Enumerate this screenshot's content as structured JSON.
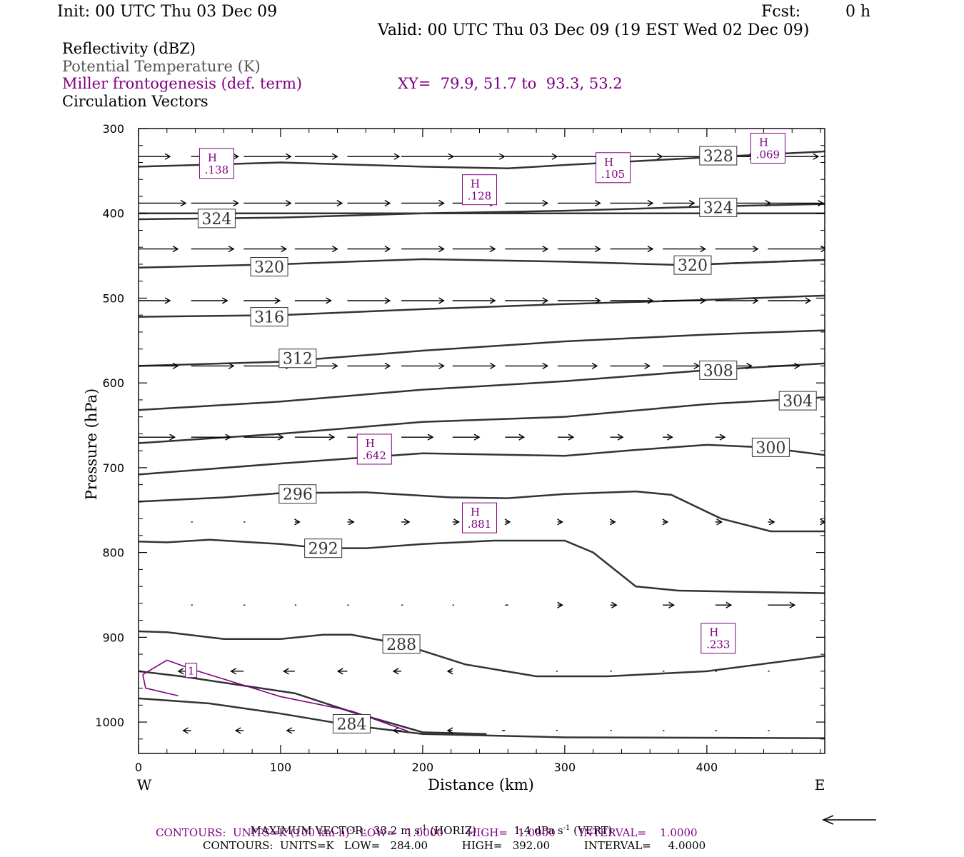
{
  "header": {
    "init": "Init: 00 UTC Thu 03 Dec 09",
    "fcst_label": "Fcst:",
    "fcst_value": "0 h",
    "valid": "Valid: 00 UTC Thu 03 Dec 09 (19 EST Wed 02 Dec 09)"
  },
  "legend": {
    "line1": "Reflectivity (dBZ)",
    "line2": "Potential Temperature (K)",
    "line3": "Miller frontogenesis (def. term)",
    "xy": "XY=  79.9, 51.7 to  93.3, 53.2",
    "line4": "Circulation Vectors"
  },
  "colors": {
    "theta": "#333333",
    "fronto": "#800080",
    "vectors": "#000000",
    "frame": "#000000"
  },
  "chart_data": {
    "type": "line",
    "title": "",
    "xlabel": "Distance (km)",
    "ylabel": "Pressure (hPa)",
    "xlim": [
      0,
      483
    ],
    "ylim": [
      1037,
      300
    ],
    "x_ticks": [
      0,
      100,
      200,
      300,
      400
    ],
    "y_ticks": [
      300,
      400,
      500,
      600,
      700,
      800,
      900,
      1000
    ],
    "x_end_labels": {
      "left": "W",
      "right": "E"
    },
    "theta_contours": [
      {
        "name": "328",
        "label_at": [
          408,
          332
        ],
        "points": [
          [
            0,
            345
          ],
          [
            100,
            340
          ],
          [
            200,
            345
          ],
          [
            260,
            347
          ],
          [
            300,
            343
          ],
          [
            400,
            334
          ],
          [
            483,
            327
          ]
        ]
      },
      {
        "name": "324",
        "label_at": [
          55,
          406
        ],
        "points": [
          [
            0,
            407
          ],
          [
            100,
            405
          ],
          [
            200,
            400
          ],
          [
            300,
            397
          ],
          [
            400,
            392
          ],
          [
            483,
            389
          ]
        ]
      },
      {
        "name": "324",
        "label_at": [
          408,
          393
        ],
        "points": [
          [
            0,
            400
          ],
          [
            483,
            400
          ]
        ]
      },
      {
        "name": "320",
        "label_at": [
          92,
          463
        ],
        "points": [
          [
            0,
            464
          ],
          [
            100,
            460
          ],
          [
            200,
            454
          ],
          [
            300,
            457
          ],
          [
            383,
            461
          ],
          [
            483,
            455
          ]
        ]
      },
      {
        "name": "320",
        "label_at": [
          390,
          461
        ],
        "points": [
          [
            383,
            461
          ],
          [
            483,
            455
          ]
        ]
      },
      {
        "name": "316",
        "label_at": [
          92,
          522
        ],
        "points": [
          [
            0,
            522
          ],
          [
            100,
            520
          ],
          [
            200,
            513
          ],
          [
            300,
            507
          ],
          [
            400,
            502
          ],
          [
            483,
            497
          ]
        ]
      },
      {
        "name": "312",
        "label_at": [
          112,
          571
        ],
        "points": [
          [
            0,
            580
          ],
          [
            100,
            575
          ],
          [
            200,
            562
          ],
          [
            300,
            551
          ],
          [
            400,
            543
          ],
          [
            483,
            538
          ]
        ]
      },
      {
        "name": "308",
        "label_at": [
          408,
          585
        ],
        "points": [
          [
            0,
            632
          ],
          [
            100,
            622
          ],
          [
            200,
            608
          ],
          [
            300,
            598
          ],
          [
            400,
            585
          ],
          [
            483,
            577
          ]
        ]
      },
      {
        "name": "304",
        "label_at": [
          464,
          621
        ],
        "points": [
          [
            0,
            671
          ],
          [
            100,
            660
          ],
          [
            200,
            646
          ],
          [
            300,
            640
          ],
          [
            400,
            625
          ],
          [
            483,
            617
          ]
        ]
      },
      {
        "name": "300",
        "label_at": [
          445,
          676
        ],
        "points": [
          [
            0,
            708
          ],
          [
            100,
            695
          ],
          [
            200,
            683
          ],
          [
            300,
            686
          ],
          [
            350,
            679
          ],
          [
            400,
            673
          ],
          [
            440,
            676
          ],
          [
            483,
            685
          ]
        ]
      },
      {
        "name": "296",
        "label_at": [
          112,
          731
        ],
        "points": [
          [
            0,
            740
          ],
          [
            60,
            735
          ],
          [
            100,
            730
          ],
          [
            160,
            729
          ],
          [
            220,
            735
          ],
          [
            260,
            736
          ],
          [
            300,
            731
          ],
          [
            350,
            728
          ],
          [
            375,
            732
          ],
          [
            410,
            760
          ],
          [
            445,
            775
          ],
          [
            483,
            775
          ]
        ]
      },
      {
        "name": "292",
        "label_at": [
          130,
          795
        ],
        "points": [
          [
            0,
            787
          ],
          [
            20,
            788
          ],
          [
            50,
            785
          ],
          [
            100,
            790
          ],
          [
            130,
            795
          ],
          [
            160,
            795
          ],
          [
            200,
            790
          ],
          [
            250,
            786
          ],
          [
            300,
            786
          ],
          [
            320,
            800
          ],
          [
            350,
            840
          ],
          [
            380,
            845
          ],
          [
            483,
            848
          ]
        ]
      },
      {
        "name": "288",
        "label_at": [
          185,
          908
        ],
        "points": [
          [
            0,
            893
          ],
          [
            20,
            894
          ],
          [
            60,
            902
          ],
          [
            100,
            902
          ],
          [
            130,
            897
          ],
          [
            150,
            897
          ],
          [
            185,
            908
          ],
          [
            230,
            932
          ],
          [
            280,
            946
          ],
          [
            330,
            946
          ],
          [
            400,
            940
          ],
          [
            483,
            922
          ]
        ]
      },
      {
        "name": "284",
        "label_at": [
          150,
          1002
        ],
        "points": [
          [
            0,
            940
          ],
          [
            30,
            946
          ],
          [
            70,
            956
          ],
          [
            110,
            966
          ],
          [
            150,
            988
          ],
          [
            200,
            1012
          ],
          [
            245,
            1014
          ]
        ]
      },
      {
        "name": "",
        "label_at": null,
        "points": [
          [
            0,
            972
          ],
          [
            50,
            978
          ],
          [
            100,
            990
          ],
          [
            150,
            1004
          ],
          [
            200,
            1014
          ],
          [
            300,
            1018
          ],
          [
            483,
            1019
          ]
        ]
      }
    ],
    "fronto_contours": [
      {
        "name": "1",
        "label_at": [
          37,
          939
        ],
        "points": [
          [
            3,
            944
          ],
          [
            20,
            927
          ],
          [
            40,
            939
          ],
          [
            100,
            970
          ],
          [
            150,
            987
          ],
          [
            190,
            1011
          ]
        ]
      },
      {
        "name": "",
        "label_at": null,
        "points": [
          [
            3,
            944
          ],
          [
            5,
            960
          ],
          [
            28,
            969
          ]
        ]
      }
    ],
    "fronto_maxima": [
      {
        "label": "H",
        "value": ".138",
        "at": [
          55,
          342
        ]
      },
      {
        "label": "H",
        "value": ".128",
        "at": [
          240,
          373
        ]
      },
      {
        "label": "H",
        "value": ".105",
        "at": [
          334,
          347
        ]
      },
      {
        "label": "H",
        "value": ".069",
        "at": [
          443,
          324
        ]
      },
      {
        "label": "H",
        "value": ".642",
        "at": [
          166,
          679
        ]
      },
      {
        "label": "H",
        "value": ".881",
        "at": [
          240,
          760
        ]
      },
      {
        "label": "H",
        "value": ".233",
        "at": [
          408,
          902
        ]
      }
    ],
    "vector_rows": [
      {
        "p": 333,
        "vectors": [
          [
            0,
            20
          ],
          [
            37,
            30
          ],
          [
            74,
            30
          ],
          [
            110,
            27
          ],
          [
            147,
            33
          ],
          [
            185,
            33
          ],
          [
            221,
            33
          ],
          [
            258,
            33
          ],
          [
            295,
            33
          ],
          [
            332,
            33
          ],
          [
            369,
            33
          ],
          [
            406,
            25
          ],
          [
            443,
            32
          ],
          [
            480,
            15
          ]
        ]
      },
      {
        "p": 388,
        "vectors": [
          [
            0,
            30
          ],
          [
            37,
            30
          ],
          [
            74,
            30
          ],
          [
            110,
            30
          ],
          [
            147,
            27
          ],
          [
            185,
            27
          ],
          [
            221,
            27
          ],
          [
            258,
            27
          ],
          [
            295,
            27
          ],
          [
            332,
            27
          ],
          [
            369,
            20
          ],
          [
            406,
            35
          ],
          [
            443,
            35
          ],
          [
            480,
            15
          ]
        ]
      },
      {
        "p": 442,
        "vectors": [
          [
            0,
            25
          ],
          [
            37,
            27
          ],
          [
            74,
            27
          ],
          [
            110,
            27
          ],
          [
            147,
            27
          ],
          [
            185,
            27
          ],
          [
            221,
            27
          ],
          [
            258,
            27
          ],
          [
            295,
            27
          ],
          [
            332,
            27
          ],
          [
            369,
            27
          ],
          [
            406,
            27
          ],
          [
            443,
            37
          ]
        ]
      },
      {
        "p": 503,
        "vectors": [
          [
            0,
            20
          ],
          [
            37,
            23
          ],
          [
            74,
            23
          ],
          [
            110,
            23
          ],
          [
            147,
            27
          ],
          [
            185,
            27
          ],
          [
            221,
            27
          ],
          [
            258,
            27
          ],
          [
            295,
            27
          ],
          [
            332,
            27
          ],
          [
            369,
            27
          ],
          [
            406,
            27
          ],
          [
            443,
            27
          ]
        ]
      },
      {
        "p": 580,
        "vectors": [
          [
            0,
            25
          ],
          [
            37,
            27
          ],
          [
            74,
            30
          ],
          [
            110,
            27
          ],
          [
            147,
            27
          ],
          [
            185,
            27
          ],
          [
            221,
            27
          ],
          [
            258,
            27
          ],
          [
            295,
            25
          ],
          [
            332,
            25
          ],
          [
            369,
            23
          ],
          [
            406,
            23
          ],
          [
            443,
            20
          ]
        ]
      },
      {
        "p": 664,
        "vectors": [
          [
            0,
            23
          ],
          [
            37,
            25
          ],
          [
            74,
            25
          ],
          [
            110,
            25
          ],
          [
            147,
            23
          ],
          [
            185,
            20
          ],
          [
            221,
            17
          ],
          [
            258,
            12
          ],
          [
            295,
            10
          ],
          [
            332,
            8
          ],
          [
            369,
            6
          ],
          [
            406,
            6
          ]
        ]
      },
      {
        "p": 764,
        "vectors": [
          [
            37,
            1
          ],
          [
            74,
            1
          ],
          [
            110,
            3
          ],
          [
            147,
            4
          ],
          [
            185,
            5
          ],
          [
            221,
            4
          ],
          [
            258,
            3
          ],
          [
            295,
            3
          ],
          [
            332,
            3
          ],
          [
            369,
            3
          ],
          [
            406,
            4
          ],
          [
            443,
            4
          ],
          [
            480,
            3
          ]
        ]
      },
      {
        "p": 862,
        "vectors": [
          [
            37,
            1
          ],
          [
            74,
            1
          ],
          [
            110,
            1
          ],
          [
            147,
            1
          ],
          [
            185,
            1
          ],
          [
            221,
            1
          ],
          [
            258,
            2
          ],
          [
            295,
            3
          ],
          [
            332,
            4
          ],
          [
            369,
            7
          ],
          [
            406,
            10
          ],
          [
            443,
            17
          ]
        ]
      },
      {
        "p": 940,
        "vectors": [
          [
            37,
            -8
          ],
          [
            74,
            -8
          ],
          [
            110,
            -7
          ],
          [
            147,
            -6
          ],
          [
            185,
            -5
          ],
          [
            221,
            -3
          ],
          [
            258,
            -2
          ],
          [
            295,
            -1
          ],
          [
            332,
            1
          ],
          [
            369,
            1
          ],
          [
            406,
            1
          ],
          [
            443,
            1
          ]
        ]
      },
      {
        "p": 1010,
        "vectors": [
          [
            37,
            -5
          ],
          [
            74,
            -5
          ],
          [
            110,
            -5
          ],
          [
            147,
            -5
          ],
          [
            185,
            -5
          ],
          [
            221,
            -3
          ],
          [
            258,
            -2
          ],
          [
            295,
            -1
          ],
          [
            332,
            1
          ],
          [
            369,
            1
          ],
          [
            406,
            1
          ],
          [
            443,
            1
          ]
        ]
      }
    ]
  },
  "footer": {
    "max_vector_label": "MAXIMUM VECTOR:",
    "max_horiz": "33.2 m s",
    "max_horiz_exp": "-1",
    "max_horiz_suffix": "(HORIZ)",
    "max_vert": "1.4 dPa s",
    "max_vert_exp": "-1",
    "max_vert_suffix": "(VERT)",
    "contours_fronto_a": "CONTOURS:  UNITS=K (100 km h)",
    "contours_fronto_exp": "-1",
    "contours_fronto_b": " LOW=   1.0000       HIGH=   1.0000       INTERVAL=    1.0000",
    "contours_theta": "CONTOURS:  UNITS=K   LOW=   284.00          HIGH=   392.00          INTERVAL=     4.0000"
  }
}
